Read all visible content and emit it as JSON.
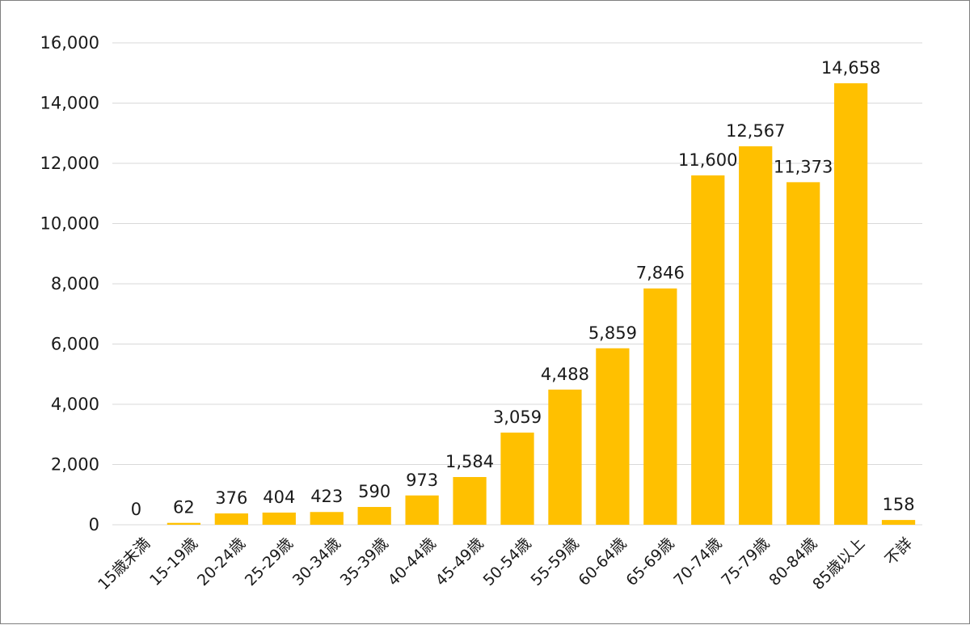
{
  "chart_data": {
    "type": "bar",
    "categories": [
      "15歳未満",
      "15-19歳",
      "20-24歳",
      "25-29歳",
      "30-34歳",
      "35-39歳",
      "40-44歳",
      "45-49歳",
      "50-54歳",
      "55-59歳",
      "60-64歳",
      "65-69歳",
      "70-74歳",
      "75-79歳",
      "80-84歳",
      "85歳以上",
      "不詳"
    ],
    "values": [
      0,
      62,
      376,
      404,
      423,
      590,
      973,
      1584,
      3059,
      4488,
      5859,
      7846,
      11600,
      12567,
      11373,
      14658,
      158
    ],
    "value_labels": [
      "0",
      "62",
      "376",
      "404",
      "423",
      "590",
      "973",
      "1,584",
      "3,059",
      "4,488",
      "5,859",
      "7,846",
      "11,600",
      "12,567",
      "11,373",
      "14,658",
      "158"
    ],
    "yticks": [
      0,
      2000,
      4000,
      6000,
      8000,
      10000,
      12000,
      14000,
      16000
    ],
    "ytick_labels": [
      "0",
      "2,000",
      "4,000",
      "6,000",
      "8,000",
      "10,000",
      "12,000",
      "14,000",
      "16,000"
    ],
    "ylim": [
      0,
      16000
    ],
    "grid": true,
    "legend": "none",
    "bar_color": "#FFC000",
    "grid_color": "#d9d9d9"
  }
}
